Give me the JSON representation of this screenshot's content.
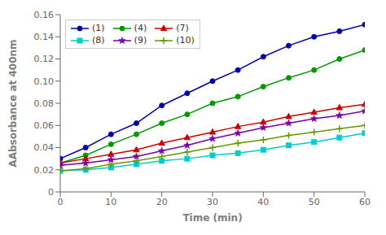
{
  "chart_data": {
    "type": "line",
    "xlabel": "Time (min)",
    "ylabel": "AAbsorbance at 400nm",
    "x": [
      0,
      5,
      10,
      15,
      20,
      25,
      30,
      35,
      40,
      45,
      50,
      55,
      60
    ],
    "xlim": [
      0,
      60
    ],
    "ylim": [
      0,
      0.16
    ],
    "xticks": [
      0,
      10,
      20,
      30,
      40,
      50,
      60
    ],
    "yticks": [
      0,
      0.02,
      0.04,
      0.06,
      0.08,
      {
        "value": 0.1,
        "label": "0.10"
      },
      0.12,
      0.14,
      0.16
    ],
    "grid": false,
    "legend": "upper left",
    "series": [
      {
        "name": "(1)",
        "color": "#0000aa",
        "marker": "circle",
        "values": [
          0.03,
          0.04,
          0.052,
          0.062,
          0.078,
          0.089,
          0.1,
          0.11,
          0.122,
          0.132,
          0.14,
          0.145,
          0.151
        ]
      },
      {
        "name": "(4)",
        "color": "#009900",
        "marker": "circle",
        "values": [
          0.026,
          0.033,
          0.043,
          0.052,
          0.062,
          0.07,
          0.08,
          0.086,
          0.095,
          0.103,
          0.11,
          0.12,
          0.128
        ]
      },
      {
        "name": "(7)",
        "color": "#cc0000",
        "marker": "triangle",
        "values": [
          0.026,
          0.03,
          0.034,
          0.038,
          0.044,
          0.049,
          0.054,
          0.059,
          0.063,
          0.068,
          0.072,
          0.076,
          0.079
        ]
      },
      {
        "name": "(8)",
        "color": "#00cccc",
        "marker": "square",
        "values": [
          0.019,
          0.02,
          0.022,
          0.025,
          0.028,
          0.03,
          0.033,
          0.035,
          0.038,
          0.042,
          0.045,
          0.049,
          0.053
        ]
      },
      {
        "name": "(9)",
        "color": "#7700aa",
        "marker": "star",
        "values": [
          0.024,
          0.026,
          0.029,
          0.032,
          0.037,
          0.042,
          0.048,
          0.053,
          0.058,
          0.062,
          0.066,
          0.069,
          0.073
        ]
      },
      {
        "name": "(10)",
        "color": "#669900",
        "marker": "plus",
        "values": [
          0.019,
          0.021,
          0.025,
          0.028,
          0.032,
          0.036,
          0.04,
          0.044,
          0.047,
          0.051,
          0.054,
          0.057,
          0.06
        ]
      }
    ]
  }
}
